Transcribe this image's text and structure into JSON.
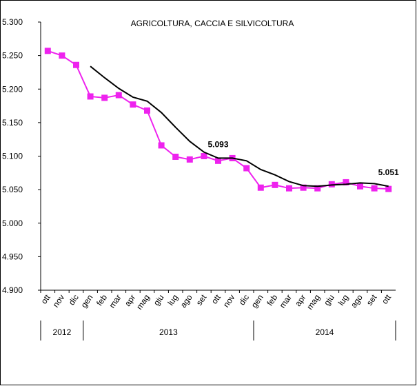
{
  "chart_data": {
    "type": "line",
    "title": "AGRICOLTURA, CACCIA E SILVICOLTURA",
    "categories": [
      "ott",
      "nov",
      "dic",
      "gen",
      "feb",
      "mar",
      "apr",
      "mag",
      "giu",
      "lug",
      "ago",
      "set",
      "ott",
      "nov",
      "dic",
      "gen",
      "feb",
      "mar",
      "apr",
      "mag",
      "giu",
      "lug",
      "ago",
      "set",
      "ott"
    ],
    "x_group_labels": [
      "2012",
      "2013",
      "2014"
    ],
    "series": [
      {
        "color": "#ee22ee",
        "marker": "square",
        "values": [
          5.257,
          5.25,
          5.236,
          5.189,
          5.187,
          5.191,
          5.177,
          5.168,
          5.116,
          5.099,
          5.095,
          5.1,
          5.093,
          5.097,
          5.082,
          5.053,
          5.057,
          5.052,
          5.053,
          5.052,
          5.058,
          5.061,
          5.055,
          5.052,
          5.051
        ],
        "value_labels": [
          null,
          null,
          null,
          null,
          null,
          null,
          null,
          null,
          null,
          null,
          null,
          null,
          "5.093",
          null,
          null,
          null,
          null,
          null,
          null,
          null,
          null,
          null,
          null,
          null,
          "5.051"
        ]
      },
      {
        "color": "#000000",
        "values": [
          null,
          null,
          null,
          5.234,
          5.217,
          5.201,
          5.188,
          5.182,
          5.165,
          5.143,
          5.122,
          5.106,
          5.097,
          5.097,
          5.093,
          5.08,
          5.072,
          5.062,
          5.056,
          5.055,
          5.057,
          5.058,
          5.06,
          5.059,
          5.055
        ]
      }
    ],
    "ylim": [
      4.9,
      5.3
    ],
    "yticks": [
      {
        "value": 4.9,
        "label": "4.900"
      },
      {
        "value": 4.95,
        "label": "4.950"
      },
      {
        "value": 5.0,
        "label": "5.000"
      },
      {
        "value": 5.05,
        "label": "5.050"
      },
      {
        "value": 5.1,
        "label": "5.100"
      },
      {
        "value": 5.15,
        "label": "5.150"
      },
      {
        "value": 5.2,
        "label": "5.200"
      },
      {
        "value": 5.25,
        "label": "5.250"
      },
      {
        "value": 5.3,
        "label": "5.300"
      }
    ]
  }
}
